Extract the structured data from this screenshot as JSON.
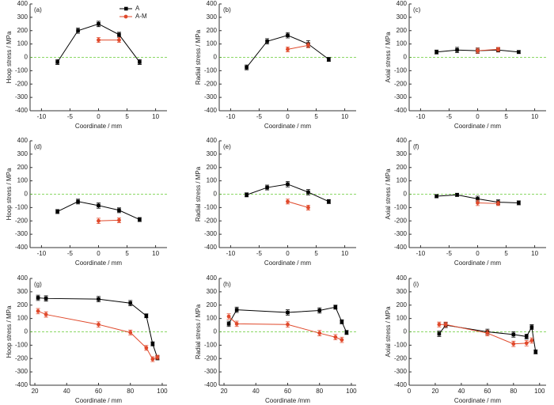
{
  "chart_data": [
    {
      "type": "line",
      "annotation": "(a)",
      "y_label": "Hoop stress / MPa",
      "x_label": "Coordinate / mm",
      "xlim": [
        -12,
        12
      ],
      "xticks": [
        -10,
        -5,
        0,
        5,
        10
      ],
      "ylim": [
        -400,
        400
      ],
      "yticks": [
        -400,
        -300,
        -200,
        -100,
        0,
        100,
        200,
        300,
        400
      ],
      "hline": 0,
      "hline_color": "#66cc33",
      "legend": "top-right",
      "series": [
        {
          "name": "A",
          "color": "#000000",
          "marker": "square",
          "x": [
            -7.2,
            -3.6,
            0,
            3.6,
            7.2
          ],
          "values": [
            -35,
            200,
            250,
            170,
            -35
          ],
          "errors": [
            18,
            20,
            20,
            18,
            18
          ]
        },
        {
          "name": "A-M",
          "color": "#e0492b",
          "marker": "circle",
          "x": [
            0,
            3.6
          ],
          "values": [
            130,
            130
          ],
          "errors": [
            18,
            18
          ]
        }
      ]
    },
    {
      "type": "line",
      "annotation": "(b)",
      "y_label": "Radial stress / MPa",
      "x_label": "Coordinate / mm",
      "xlim": [
        -12,
        12
      ],
      "xticks": [
        -10,
        -5,
        0,
        5,
        10
      ],
      "ylim": [
        -400,
        400
      ],
      "yticks": [
        -400,
        -300,
        -200,
        -100,
        0,
        100,
        200,
        300,
        400
      ],
      "hline": 0,
      "hline_color": "#66cc33",
      "series": [
        {
          "color": "#000000",
          "marker": "square",
          "x": [
            -7.2,
            -3.6,
            0,
            3.6,
            7.2
          ],
          "values": [
            -75,
            120,
            165,
            100,
            -15
          ],
          "errors": [
            18,
            20,
            20,
            25,
            15
          ]
        },
        {
          "color": "#e0492b",
          "marker": "circle",
          "x": [
            0,
            3.6
          ],
          "values": [
            60,
            90
          ],
          "errors": [
            18,
            18
          ]
        }
      ]
    },
    {
      "type": "line",
      "annotation": "(c)",
      "y_label": "Axial stress / MPa",
      "x_label": "Coordinate / mm",
      "xlim": [
        -12,
        12
      ],
      "xticks": [
        -10,
        -5,
        0,
        5,
        10
      ],
      "ylim": [
        -400,
        400
      ],
      "yticks": [
        -400,
        -300,
        -200,
        -100,
        0,
        100,
        200,
        300,
        400
      ],
      "hline": 0,
      "hline_color": "#66cc33",
      "series": [
        {
          "color": "#000000",
          "marker": "square",
          "x": [
            -7.2,
            -3.6,
            0,
            3.6,
            7.2
          ],
          "values": [
            40,
            55,
            50,
            55,
            40
          ],
          "errors": [
            15,
            20,
            20,
            15,
            12
          ]
        },
        {
          "color": "#e0492b",
          "marker": "circle",
          "x": [
            0,
            3.6
          ],
          "values": [
            50,
            60
          ],
          "errors": [
            18,
            15
          ]
        }
      ]
    },
    {
      "type": "line",
      "annotation": "(d)",
      "y_label": "Hoop stress / MPa",
      "x_label": "Coordinate / mm",
      "xlim": [
        -12,
        12
      ],
      "xticks": [
        -10,
        -5,
        0,
        5,
        10
      ],
      "ylim": [
        -400,
        400
      ],
      "yticks": [
        -400,
        -300,
        -200,
        -100,
        0,
        100,
        200,
        300,
        400
      ],
      "hline": 0,
      "hline_color": "#66cc33",
      "series": [
        {
          "color": "#000000",
          "marker": "square",
          "x": [
            -7.2,
            -3.6,
            0,
            3.6,
            7.2
          ],
          "values": [
            -130,
            -55,
            -85,
            -120,
            -190
          ],
          "errors": [
            15,
            18,
            20,
            18,
            15
          ]
        },
        {
          "color": "#e0492b",
          "marker": "circle",
          "x": [
            0,
            3.6
          ],
          "values": [
            -200,
            -195
          ],
          "errors": [
            20,
            18
          ]
        }
      ]
    },
    {
      "type": "line",
      "annotation": "(e)",
      "y_label": "Radial stress / MPa",
      "x_label": "Coordinate / mm",
      "xlim": [
        -12,
        12
      ],
      "xticks": [
        -10,
        -5,
        0,
        5,
        10
      ],
      "ylim": [
        -400,
        400
      ],
      "yticks": [
        -400,
        -300,
        -200,
        -100,
        0,
        100,
        200,
        300,
        400
      ],
      "hline": 0,
      "hline_color": "#66cc33",
      "series": [
        {
          "color": "#000000",
          "marker": "square",
          "x": [
            -7.2,
            -3.6,
            0,
            3.6,
            7.2
          ],
          "values": [
            -5,
            50,
            75,
            15,
            -55
          ],
          "errors": [
            15,
            18,
            20,
            20,
            15
          ]
        },
        {
          "color": "#e0492b",
          "marker": "circle",
          "x": [
            0,
            3.6
          ],
          "values": [
            -55,
            -100
          ],
          "errors": [
            18,
            18
          ]
        }
      ]
    },
    {
      "type": "line",
      "annotation": "(f)",
      "y_label": "Axial stress / MPa",
      "x_label": "Coordinate / mm",
      "xlim": [
        -12,
        12
      ],
      "xticks": [
        -10,
        -5,
        0,
        5,
        10
      ],
      "ylim": [
        -400,
        400
      ],
      "yticks": [
        -400,
        -300,
        -200,
        -100,
        0,
        100,
        200,
        300,
        400
      ],
      "hline": 0,
      "hline_color": "#66cc33",
      "series": [
        {
          "color": "#000000",
          "marker": "square",
          "x": [
            -7.2,
            -3.6,
            0,
            3.6,
            7.2
          ],
          "values": [
            -15,
            -5,
            -35,
            -60,
            -65
          ],
          "errors": [
            12,
            12,
            20,
            18,
            15
          ]
        },
        {
          "color": "#e0492b",
          "marker": "circle",
          "x": [
            0,
            3.6
          ],
          "values": [
            -65,
            -70
          ],
          "errors": [
            20,
            15
          ]
        }
      ]
    },
    {
      "type": "line",
      "annotation": "(g)",
      "y_label": "Hoop stress / MPa",
      "x_label": "Coordinate / mm",
      "xlim": [
        17,
        103
      ],
      "xticks": [
        20,
        40,
        60,
        80,
        100
      ],
      "ylim": [
        -400,
        400
      ],
      "yticks": [
        -400,
        -300,
        -200,
        -100,
        0,
        100,
        200,
        300,
        400
      ],
      "hline": 0,
      "hline_color": "#66cc33",
      "series": [
        {
          "color": "#000000",
          "marker": "square",
          "x": [
            22,
            27,
            60,
            80,
            90,
            94,
            97
          ],
          "values": [
            255,
            250,
            245,
            215,
            120,
            -90,
            -195
          ],
          "errors": [
            20,
            20,
            20,
            20,
            15,
            15,
            15
          ]
        },
        {
          "color": "#e0492b",
          "marker": "circle",
          "x": [
            22,
            27,
            60,
            80,
            90,
            94,
            97
          ],
          "values": [
            155,
            130,
            55,
            -5,
            -120,
            -205,
            -190
          ],
          "errors": [
            20,
            20,
            20,
            18,
            18,
            18,
            15
          ]
        }
      ]
    },
    {
      "type": "line",
      "annotation": "(h)",
      "y_label": "Radial stress / MPa",
      "x_label": "Coordinate /mm",
      "xlim": [
        17,
        103
      ],
      "xticks": [
        20,
        40,
        60,
        80,
        100
      ],
      "ylim": [
        -400,
        400
      ],
      "yticks": [
        -400,
        -300,
        -200,
        -100,
        0,
        100,
        200,
        300,
        400
      ],
      "hline": 0,
      "hline_color": "#66cc33",
      "series": [
        {
          "color": "#000000",
          "marker": "square",
          "x": [
            23,
            28,
            60,
            80,
            90,
            94,
            97
          ],
          "values": [
            60,
            165,
            145,
            160,
            185,
            75,
            -5
          ],
          "errors": [
            20,
            20,
            20,
            20,
            15,
            15,
            15
          ]
        },
        {
          "color": "#e0492b",
          "marker": "circle",
          "x": [
            23,
            28,
            60,
            80,
            90,
            94
          ],
          "values": [
            115,
            60,
            55,
            -10,
            -40,
            -60
          ],
          "errors": [
            20,
            20,
            20,
            20,
            20,
            20
          ]
        }
      ]
    },
    {
      "type": "line",
      "annotation": "(i)",
      "y_label": "Axial stress / MPa",
      "x_label": "Coordinate / mm",
      "xlim": [
        0,
        105
      ],
      "xticks": [
        0,
        20,
        40,
        60,
        80,
        100
      ],
      "ylim": [
        -400,
        400
      ],
      "yticks": [
        -400,
        -300,
        -200,
        -100,
        0,
        100,
        200,
        300,
        400
      ],
      "hline": 0,
      "hline_color": "#66cc33",
      "series": [
        {
          "color": "#000000",
          "marker": "square",
          "x": [
            23,
            28,
            60,
            80,
            90,
            94,
            97
          ],
          "values": [
            -15,
            50,
            0,
            -20,
            -35,
            35,
            -150
          ],
          "errors": [
            20,
            18,
            20,
            20,
            18,
            18,
            15
          ]
        },
        {
          "color": "#e0492b",
          "marker": "circle",
          "x": [
            23,
            28,
            60,
            80,
            90,
            94
          ],
          "values": [
            55,
            55,
            -10,
            -90,
            -85,
            -65
          ],
          "errors": [
            18,
            18,
            20,
            20,
            20,
            20
          ]
        }
      ]
    }
  ]
}
